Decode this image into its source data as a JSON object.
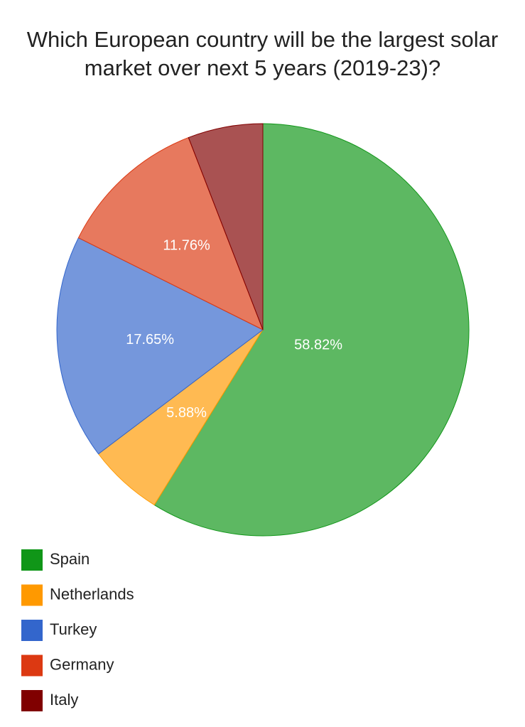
{
  "chart_data": {
    "type": "pie",
    "title": "Which European country will be the largest solar market over next 5 years (2019-23)?",
    "categories": [
      "Spain",
      "Netherlands",
      "Turkey",
      "Germany",
      "Italy"
    ],
    "values": [
      58.82,
      5.88,
      17.65,
      11.76,
      5.88
    ],
    "value_labels": [
      "58.82%",
      "5.88%",
      "17.65%",
      "11.76%",
      null
    ],
    "colors": [
      "#109618",
      "#ff9900",
      "#3366cc",
      "#dc3912",
      "#800000"
    ],
    "legend": "bottom-left"
  }
}
